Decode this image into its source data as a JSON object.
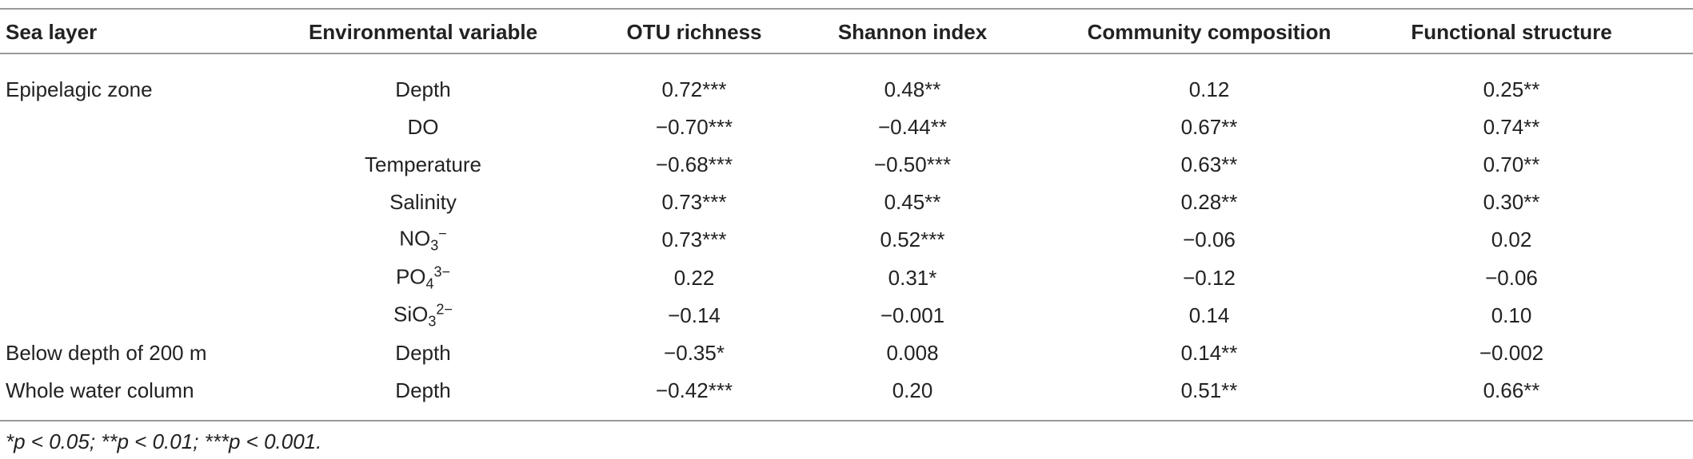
{
  "table": {
    "header": [
      "Sea layer",
      "Environmental variable",
      "OTU richness",
      "Shannon index",
      "Community composition",
      "Functional structure"
    ],
    "rows": [
      {
        "layer": "Epipelagic zone",
        "variable": {
          "text": "Depth"
        },
        "values": [
          "0.72***",
          "0.48**",
          "0.12",
          "0.25**"
        ]
      },
      {
        "variable": {
          "text": "DO"
        },
        "values": [
          "−0.70***",
          "−0.44**",
          "0.67**",
          "0.74**"
        ]
      },
      {
        "variable": {
          "text": "Temperature"
        },
        "values": [
          "−0.68***",
          "−0.50***",
          "0.63**",
          "0.70**"
        ]
      },
      {
        "variable": {
          "text": "Salinity"
        },
        "values": [
          "0.73***",
          "0.45**",
          "0.28**",
          "0.30**"
        ]
      },
      {
        "variable": {
          "text": "NO",
          "sub": "3",
          "sup": "−"
        },
        "values": [
          "0.73***",
          "0.52***",
          "−0.06",
          "0.02"
        ]
      },
      {
        "variable": {
          "text": "PO",
          "sub": "4",
          "sup": "3−"
        },
        "values": [
          "0.22",
          "0.31*",
          "−0.12",
          "−0.06"
        ]
      },
      {
        "variable": {
          "text": "SiO",
          "sub": "3",
          "sup": "2−"
        },
        "values": [
          "−0.14",
          "−0.001",
          "0.14",
          "0.10"
        ]
      },
      {
        "layer": "Below depth of 200 m",
        "variable": {
          "text": "Depth"
        },
        "values": [
          "−0.35*",
          "0.008",
          "0.14**",
          "−0.002"
        ]
      },
      {
        "layer": "Whole water column",
        "variable": {
          "text": "Depth"
        },
        "values": [
          "−0.42***",
          "0.20",
          "0.51**",
          "0.66**"
        ]
      }
    ],
    "footnote": "*p < 0.05; **p < 0.01; ***p < 0.001."
  }
}
